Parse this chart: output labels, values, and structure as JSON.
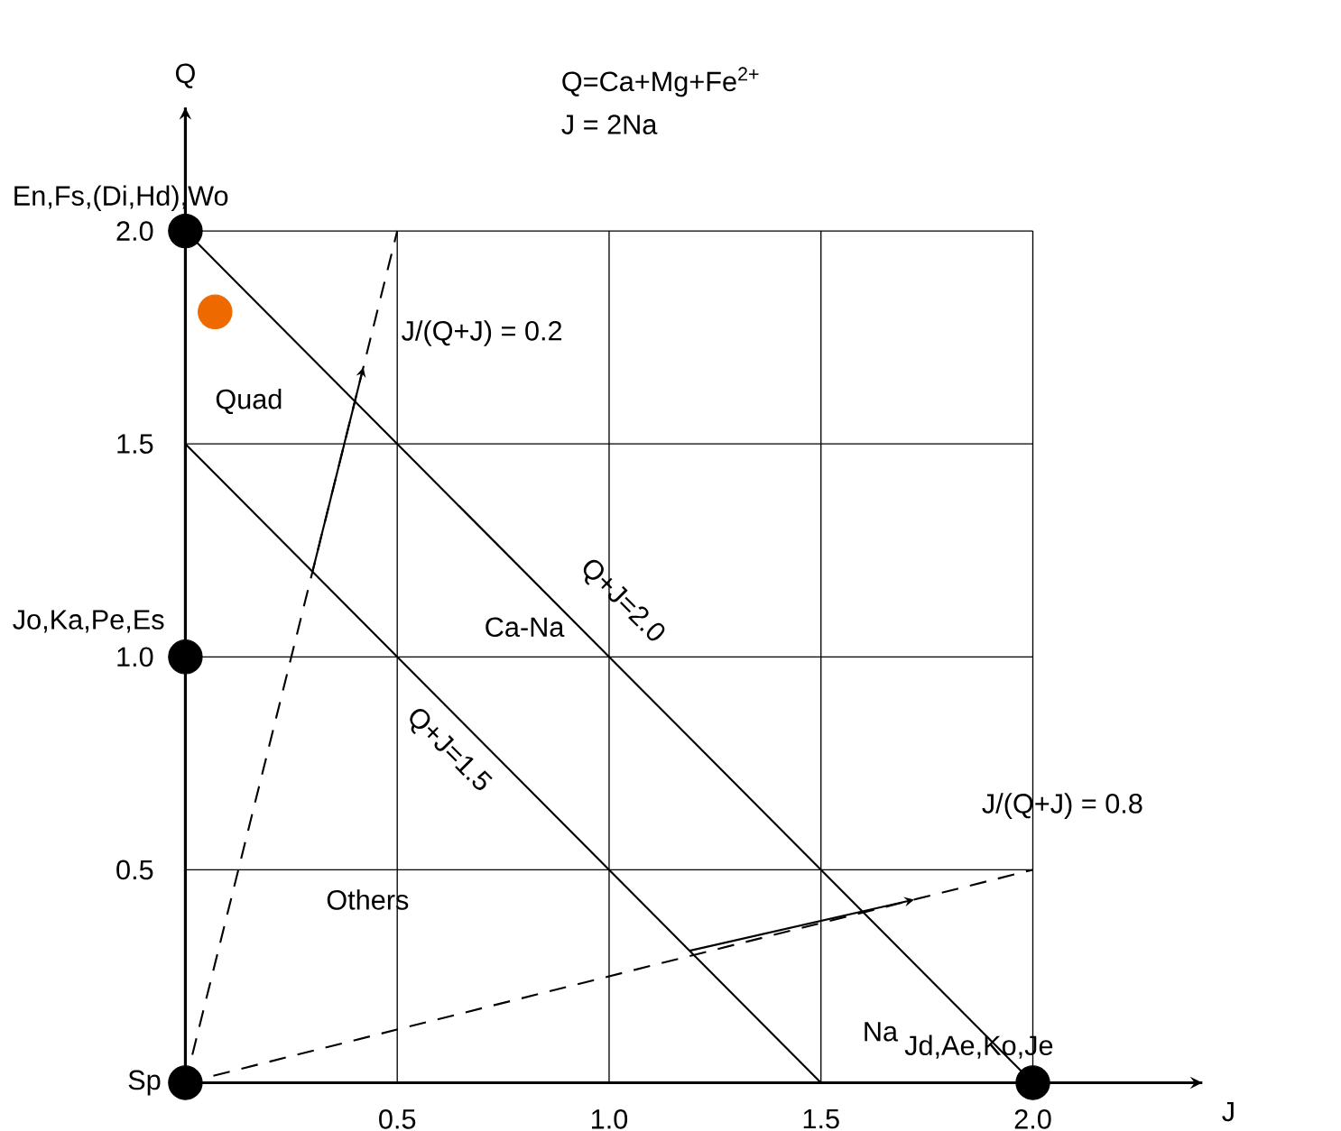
{
  "chart_data": {
    "type": "line",
    "xlabel": "J",
    "ylabel": "Q",
    "xlim": [
      0,
      2.4
    ],
    "ylim": [
      0,
      2.29
    ],
    "xticks": [
      {
        "value": 0.5,
        "label": "0.5"
      },
      {
        "value": 1.0,
        "label": "1.0"
      },
      {
        "value": 1.5,
        "label": "1.5"
      },
      {
        "value": 2.0,
        "label": "2.0"
      }
    ],
    "yticks": [
      {
        "value": 0.5,
        "label": "0.5"
      },
      {
        "value": 1.0,
        "label": "1.0"
      },
      {
        "value": 1.5,
        "label": "1.5"
      },
      {
        "value": 2.0,
        "label": "2.0"
      }
    ],
    "grid": true,
    "series": [
      {
        "x": [
          0,
          2
        ],
        "values": [
          2,
          0
        ],
        "color": "#000000",
        "line_style": "solid"
      },
      {
        "x": [
          0,
          1.5
        ],
        "values": [
          1.5,
          0
        ],
        "color": "#000000",
        "line_style": "solid"
      },
      {
        "x": [
          0,
          0.5
        ],
        "values": [
          0,
          2
        ],
        "color": "#000000",
        "line_style": "dashed"
      },
      {
        "x": [
          0,
          2
        ],
        "values": [
          0,
          0.5
        ],
        "color": "#000000",
        "line_style": "dashed"
      },
      {
        "type": "scatter",
        "x": [
          0,
          0,
          0,
          2
        ],
        "values": [
          2,
          1,
          0,
          0
        ],
        "color": "#000000",
        "marker": "circle"
      },
      {
        "type": "scatter",
        "x": [
          0.07
        ],
        "values": [
          1.81
        ],
        "color": "#ee6a00",
        "marker": "circle"
      }
    ],
    "annotations": [
      "Q=Ca+Mg+Fe$^{2+}$",
      "J = 2Na",
      "En,Fs,(Di,Hd),Wo",
      "Jo,Ka,Pe,Es",
      "Sp",
      "Jd,Ae,Ko,Je",
      "Quad",
      "Ca-Na",
      "Others",
      "Na",
      "Q+J=2.0",
      "Q+J=1.5",
      "J/(Q+J) = 0.2",
      "J/(Q+J) = 0.8"
    ]
  }
}
